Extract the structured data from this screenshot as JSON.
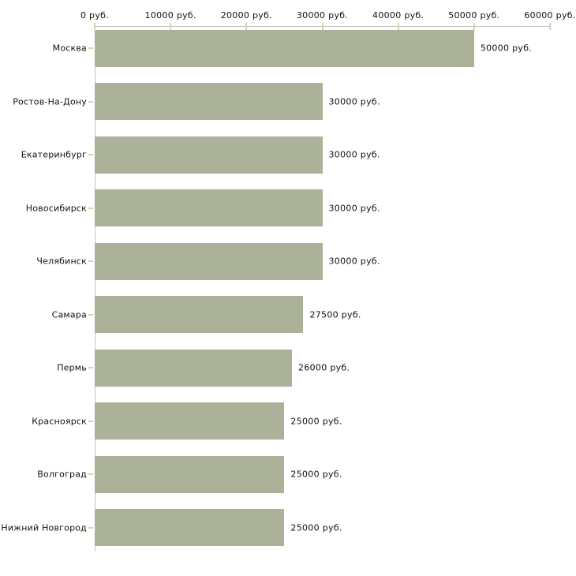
{
  "chart_data": {
    "type": "bar",
    "orientation": "horizontal",
    "title": "",
    "xlabel": "",
    "ylabel": "",
    "grid": false,
    "legend": null,
    "categories": [
      "Москва",
      "Ростов-На-Дону",
      "Екатеринбург",
      "Новосибирск",
      "Челябинск",
      "Самара",
      "Пермь",
      "Красноярск",
      "Волгоград",
      "Нижний Новгород"
    ],
    "values": [
      50000,
      30000,
      30000,
      30000,
      30000,
      27500,
      26000,
      25000,
      25000,
      25000
    ],
    "value_labels": [
      "50000 руб.",
      "30000 руб.",
      "30000 руб.",
      "30000 руб.",
      "30000 руб.",
      "27500 руб.",
      "26000 руб.",
      "25000 руб.",
      "25000 руб.",
      "25000 руб."
    ],
    "x_axis": {
      "position": "top",
      "xlim": [
        0,
        60000
      ],
      "ticks": [
        0,
        10000,
        20000,
        30000,
        40000,
        50000,
        60000
      ],
      "tick_labels": [
        "0 руб.",
        "10000 руб.",
        "20000 руб.",
        "30000 руб.",
        "40000 руб.",
        "50000 руб.",
        "60000 руб."
      ]
    },
    "colors": {
      "bar_fill": "#acb299",
      "axis_line": "#c3c3c3",
      "tick_mark": "#d4d6aa",
      "text": "#111111",
      "background": "#ffffff"
    }
  }
}
